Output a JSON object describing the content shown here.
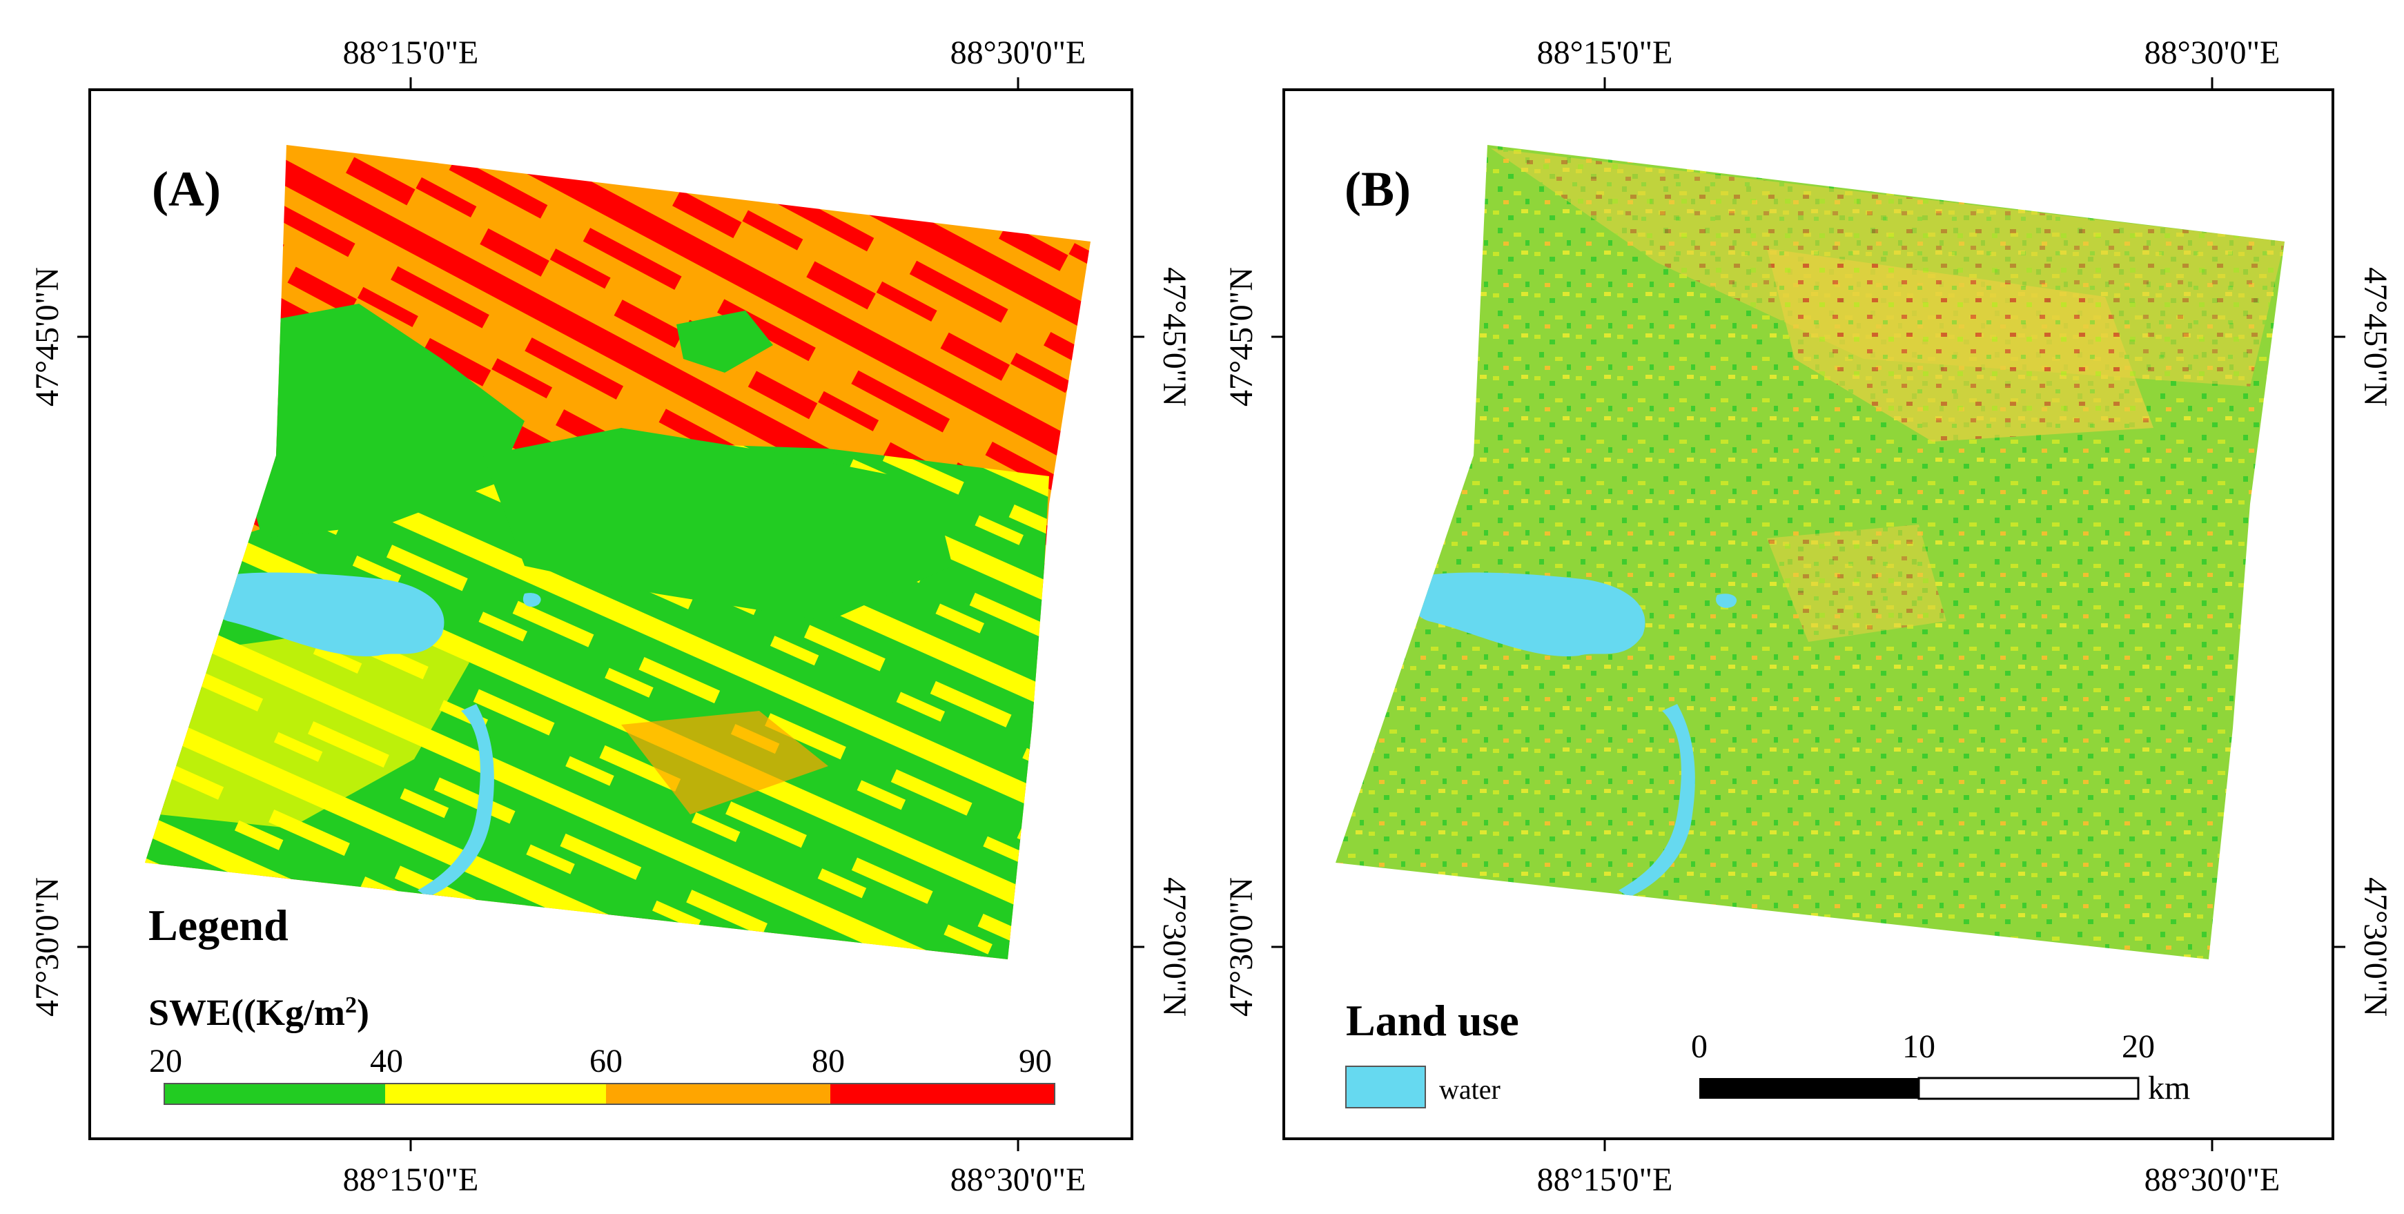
{
  "colors": {
    "swe_20_40": "#22cc22",
    "swe_40_60": "#ffff00",
    "swe_60_80": "#ffa500",
    "swe_80_90": "#ff0000",
    "water": "#66d9f0",
    "frame": "#000000"
  },
  "panel_a": {
    "label": "(A)",
    "lon_ticks": [
      "88°15'0\"E",
      "88°30'0\"E"
    ],
    "lat_ticks": [
      "47°45'0\"N",
      "47°30'0\"N"
    ],
    "legend": {
      "title": "Legend",
      "subtitle": "SWE((Kg/m",
      "subtitle_sup": "2",
      "subtitle_end": ")",
      "breaks": [
        "20",
        "40",
        "60",
        "80",
        "90"
      ]
    }
  },
  "panel_b": {
    "label": "(B)",
    "lon_ticks": [
      "88°15'0\"E",
      "88°30'0\"E"
    ],
    "lat_ticks": [
      "47°45'0\"N",
      "47°30'0\"N"
    ],
    "landuse": {
      "title": "Land use",
      "item": "water"
    },
    "scalebar": {
      "ticks": [
        "0",
        "10",
        "20"
      ],
      "unit": "km"
    }
  }
}
